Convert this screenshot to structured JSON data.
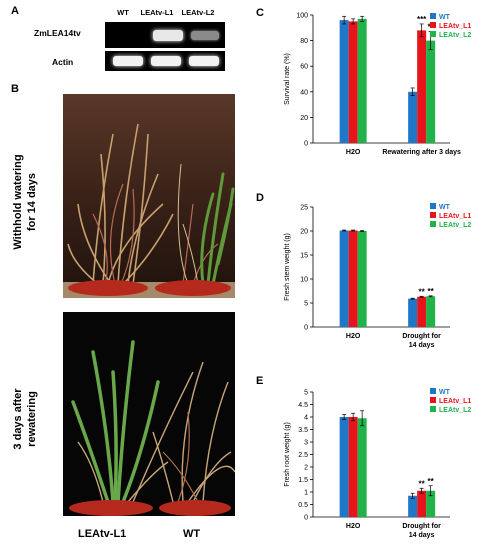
{
  "panels": {
    "a": "A",
    "b": "B",
    "c": "C",
    "d": "D",
    "e": "E"
  },
  "gel": {
    "lanes": [
      "WT",
      "LEAtv-L1",
      "LEAtv-L2"
    ],
    "rows": [
      "ZmLEA14tv",
      "Actin"
    ]
  },
  "photos": {
    "top_label_line1": "Withhold watering",
    "top_label_line2": "for 14 days",
    "bottom_label_line1": "3 days after",
    "bottom_label_line2": "rewatering",
    "left_plant": "LEAtv-L1",
    "right_plant": "WT"
  },
  "colors": {
    "WT": "#1f77c8",
    "LEAtv_L1": "#e8141b",
    "LEAtv_L2": "#1fb34a"
  },
  "chart_data": [
    {
      "type": "bar",
      "id": "c",
      "categories": [
        "H2O",
        "Rewatering after 3 days"
      ],
      "series": [
        {
          "name": "WT",
          "values": [
            96,
            40
          ],
          "errors": [
            3,
            3
          ]
        },
        {
          "name": "LEAtv_L1",
          "values": [
            95,
            88
          ],
          "errors": [
            2,
            5
          ]
        },
        {
          "name": "LEAtv_L2",
          "values": [
            97,
            80
          ],
          "errors": [
            2,
            7
          ]
        }
      ],
      "ylabel": "Survival rate (%)",
      "ylim": [
        0,
        100
      ],
      "yticks": [
        "0",
        "20",
        "40",
        "60",
        "80",
        "100"
      ],
      "annotations": [
        {
          "category": 1,
          "series": 1,
          "text": "***"
        },
        {
          "category": 1,
          "series": 2,
          "text": "**"
        }
      ],
      "legend": "top-right"
    },
    {
      "type": "bar",
      "id": "d",
      "categories": [
        "H2O",
        "Drought for 14 days"
      ],
      "series": [
        {
          "name": "WT",
          "values": [
            20.1,
            5.9
          ],
          "errors": [
            0.1,
            0.1
          ]
        },
        {
          "name": "LEAtv_L1",
          "values": [
            20.1,
            6.3
          ],
          "errors": [
            0.1,
            0.1
          ]
        },
        {
          "name": "LEAtv_L2",
          "values": [
            20.0,
            6.4
          ],
          "errors": [
            0.1,
            0.1
          ]
        }
      ],
      "ylabel": "Fresh stem weight (g)",
      "ylim": [
        0,
        25
      ],
      "yticks": [
        "0",
        "5",
        "10",
        "15",
        "20",
        "25"
      ],
      "annotations": [
        {
          "category": 1,
          "series": 1,
          "text": "**"
        },
        {
          "category": 1,
          "series": 2,
          "text": "**"
        }
      ],
      "legend": "top-right"
    },
    {
      "type": "bar",
      "id": "e",
      "categories": [
        "H2O",
        "Drought for 14 days"
      ],
      "series": [
        {
          "name": "WT",
          "values": [
            4.0,
            0.85
          ],
          "errors": [
            0.1,
            0.1
          ]
        },
        {
          "name": "LEAtv_L1",
          "values": [
            4.0,
            1.05
          ],
          "errors": [
            0.15,
            0.1
          ]
        },
        {
          "name": "LEAtv_L2",
          "values": [
            3.95,
            1.05
          ],
          "errors": [
            0.3,
            0.2
          ]
        }
      ],
      "ylabel": "Fresh root weight (g)",
      "ylim": [
        0,
        5
      ],
      "yticks": [
        "0",
        "0.5",
        "1",
        "1.5",
        "2",
        "2.5",
        "3",
        "3.5",
        "4",
        "4.5",
        "5"
      ],
      "annotations": [
        {
          "category": 1,
          "series": 1,
          "text": "**"
        },
        {
          "category": 1,
          "series": 2,
          "text": "**"
        }
      ],
      "legend": "top-right"
    }
  ]
}
